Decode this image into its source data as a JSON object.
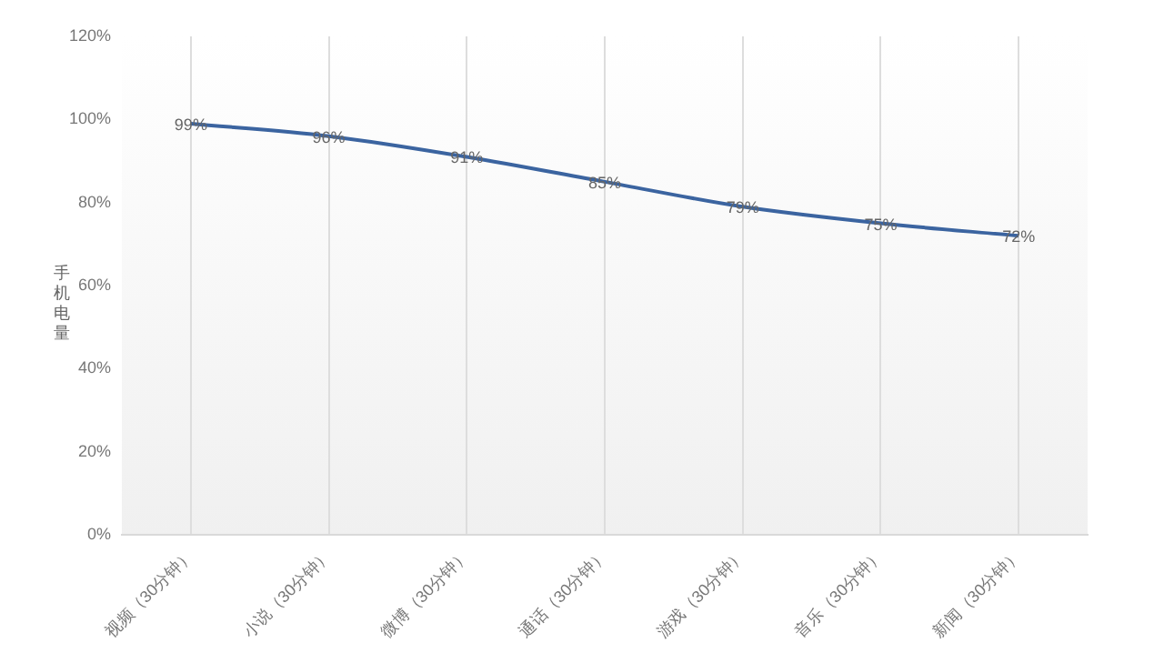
{
  "chart_data": {
    "type": "line",
    "ylabel": "手机电量",
    "categories": [
      "视频（30分钟）",
      "小说（30分钟）",
      "微博（30分钟）",
      "通话（30分钟）",
      "游戏（30分钟）",
      "音乐（30分钟）",
      "新闻（30分钟）"
    ],
    "series": [
      {
        "color": "#3b64a0",
        "values": [
          99,
          96,
          91,
          85,
          79,
          75,
          72
        ],
        "value_labels": [
          "99%",
          "96%",
          "91%",
          "85%",
          "79%",
          "75%",
          "72%"
        ]
      }
    ],
    "ylim": [
      0,
      120
    ],
    "yticks": [
      {
        "value": 0,
        "label": "0%"
      },
      {
        "value": 20,
        "label": "20%"
      },
      {
        "value": 40,
        "label": "40%"
      },
      {
        "value": 60,
        "label": "60%"
      },
      {
        "value": 80,
        "label": "80%"
      },
      {
        "value": 100,
        "label": "100%"
      },
      {
        "value": 120,
        "label": "120%"
      }
    ],
    "grid": "x",
    "legend": false,
    "marker": "none",
    "line_style": "solid"
  }
}
